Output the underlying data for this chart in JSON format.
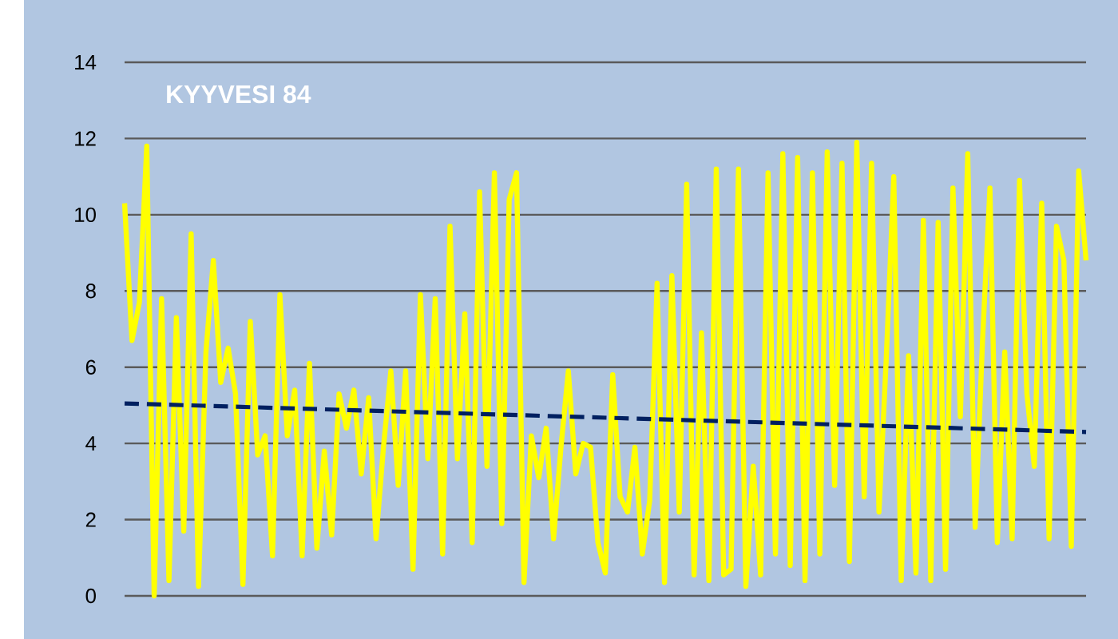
{
  "chart_data": {
    "type": "line",
    "title": "KYYVESI 84",
    "categories": [
      null,
      null,
      null,
      null,
      null,
      null,
      null,
      null,
      null,
      null,
      null,
      null,
      null,
      null,
      null,
      null,
      null,
      null,
      null,
      null,
      null,
      null,
      null,
      null,
      null,
      null,
      null,
      null,
      null,
      null,
      null,
      null,
      null,
      null,
      null,
      null,
      null,
      null,
      null,
      null,
      null,
      null,
      null,
      null,
      null,
      null,
      null,
      null,
      null,
      null,
      null,
      null,
      null,
      null,
      null,
      null,
      null,
      null,
      null,
      null,
      null,
      null,
      null,
      null,
      null,
      null,
      null,
      null,
      null,
      null,
      null,
      null,
      null,
      null,
      null,
      null,
      null,
      null,
      null,
      null,
      null,
      null,
      null,
      null,
      null,
      null,
      null,
      null,
      null,
      null,
      null,
      null,
      null,
      null,
      null,
      null,
      null,
      null,
      null,
      null,
      null,
      null,
      null,
      null,
      null,
      null,
      null,
      null,
      null,
      null,
      null,
      null,
      null,
      null,
      null,
      null,
      null,
      null,
      null,
      null,
      null,
      null,
      null,
      null,
      null,
      null,
      null,
      null,
      null,
      null,
      null
    ],
    "series": [
      {
        "color": "#ffff00",
        "values": [
          10.3,
          6.7,
          7.7,
          11.8,
          0,
          7.8,
          0.4,
          7.3,
          1.7,
          9.5,
          0.25,
          6.4,
          8.8,
          5.6,
          6.5,
          5.3,
          0.3,
          7.2,
          3.7,
          4.2,
          1.05,
          7.9,
          4.2,
          5.4,
          1.05,
          6.1,
          1.25,
          3.8,
          1.6,
          5.3,
          4.4,
          5.4,
          3.2,
          5.2,
          1.5,
          3.9,
          5.9,
          2.9,
          5.9,
          0.7,
          7.9,
          3.6,
          7.8,
          1.1,
          9.7,
          3.6,
          7.4,
          1.4,
          10.6,
          3.4,
          11.1,
          1.9,
          10.4,
          11.1,
          0.35,
          4.2,
          3.1,
          4.4,
          1.5,
          3.9,
          5.9,
          3.2,
          4.0,
          3.9,
          1.4,
          0.6,
          5.8,
          2.6,
          2.2,
          3.9,
          1.1,
          2.5,
          8.2,
          0.35,
          8.4,
          2.2,
          10.8,
          0.55,
          6.9,
          0.4,
          11.2,
          0.55,
          0.7,
          11.2,
          0.25,
          3.4,
          0.55,
          11.1,
          1.1,
          11.6,
          0.8,
          11.5,
          0.4,
          11.1,
          1.1,
          11.65,
          2.9,
          11.35,
          0.9,
          11.9,
          2.6,
          11.35,
          2.2,
          6.3,
          11.0,
          0.4,
          6.3,
          0.6,
          9.85,
          0.4,
          9.8,
          0.7,
          10.7,
          4.7,
          11.6,
          1.8,
          6.7,
          10.7,
          1.4,
          6.4,
          1.5,
          10.9,
          5.3,
          3.4,
          10.3,
          1.5,
          9.7,
          8.8,
          1.3,
          11.15,
          8.8
        ]
      },
      {
        "type": "line",
        "color": "#002060",
        "line_style": "dashed",
        "values": [
          5.05,
          null,
          null,
          null,
          null,
          null,
          null,
          null,
          null,
          null,
          null,
          null,
          null,
          null,
          null,
          null,
          null,
          null,
          null,
          null,
          null,
          null,
          null,
          null,
          null,
          null,
          null,
          null,
          null,
          null,
          null,
          null,
          null,
          null,
          null,
          null,
          null,
          null,
          null,
          null,
          null,
          null,
          null,
          null,
          null,
          null,
          null,
          null,
          null,
          null,
          null,
          null,
          null,
          null,
          null,
          null,
          null,
          null,
          null,
          null,
          null,
          null,
          null,
          null,
          null,
          null,
          null,
          null,
          null,
          null,
          null,
          null,
          null,
          null,
          null,
          null,
          null,
          null,
          null,
          null,
          null,
          null,
          null,
          null,
          null,
          null,
          null,
          null,
          null,
          null,
          null,
          null,
          null,
          null,
          null,
          null,
          null,
          null,
          null,
          null,
          null,
          null,
          null,
          null,
          null,
          null,
          null,
          null,
          null,
          null,
          null,
          null,
          null,
          null,
          null,
          null,
          null,
          null,
          null,
          null,
          null,
          null,
          null,
          null,
          null,
          null,
          null,
          null,
          null,
          null,
          4.3
        ]
      }
    ],
    "ylim": [
      0,
      14
    ],
    "yticks": [
      0,
      2,
      4,
      6,
      8,
      10,
      12,
      14
    ],
    "grid": "y",
    "tick_labels": "y"
  }
}
